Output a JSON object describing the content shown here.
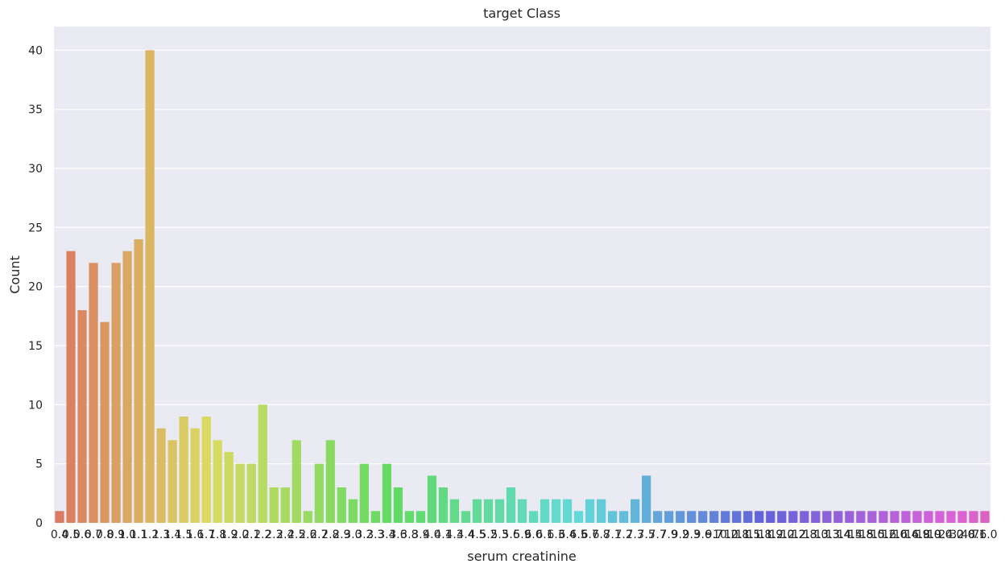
{
  "chart_data": {
    "type": "bar",
    "title": "target Class",
    "xlabel": "serum creatinine",
    "ylabel": "Count",
    "ylim": [
      0,
      42
    ],
    "yticks": [
      0,
      5,
      10,
      15,
      20,
      25,
      30,
      35,
      40
    ],
    "grid": true,
    "categories": [
      "0.4",
      "0.5",
      "0.6",
      "0.7",
      "0.8",
      "0.9",
      "1.0",
      "1.1",
      "1.2",
      "1.3",
      "1.4",
      "1.5",
      "1.6",
      "1.7",
      "1.8",
      "1.9",
      "2.0",
      "2.1",
      "2.2",
      "2.3",
      "2.4",
      "2.5",
      "2.6",
      "2.7",
      "2.8",
      "2.9",
      "3.0",
      "3.2",
      "3.3",
      "3.4",
      "3.6",
      "3.8",
      "3.9",
      "4.0",
      "4.1",
      "4.3",
      "4.4",
      "4.5",
      "5.2",
      "5.3",
      "5.6",
      "5.9",
      "6.0",
      "6.1",
      "6.3",
      "6.4",
      "6.5",
      "6.7",
      "6.8",
      "7.1",
      "7.2",
      "7.3",
      "7.5",
      "7.7",
      "7.9",
      "9.2",
      "9.3",
      "9.6",
      "9.7",
      "10.2",
      "10.8",
      "11.5",
      "11.8",
      "11.9",
      "12.0",
      "12.2",
      "12.8",
      "13.0",
      "13.3",
      "13.4",
      "14.5",
      "14.8",
      "15.0",
      "15.2",
      "16.0",
      "16.4",
      "16.9",
      "18.0",
      "19.0",
      "24.0",
      "32.0",
      "48.1",
      "76.0"
    ],
    "values": [
      1,
      23,
      18,
      22,
      17,
      22,
      23,
      24,
      40,
      8,
      7,
      9,
      8,
      9,
      7,
      6,
      5,
      5,
      10,
      3,
      3,
      7,
      1,
      5,
      7,
      3,
      2,
      5,
      1,
      5,
      3,
      1,
      1,
      4,
      3,
      2,
      1,
      2,
      2,
      2,
      3,
      2,
      1,
      2,
      2,
      2,
      1,
      2,
      2,
      1,
      1,
      2,
      4,
      1,
      1,
      1,
      1,
      1,
      1,
      1,
      1,
      1,
      1,
      1,
      1,
      1,
      1,
      1,
      1,
      1,
      1,
      1,
      1,
      1,
      1,
      1,
      1,
      1,
      1,
      1,
      1,
      1,
      1
    ],
    "colors": {
      "background": "#eaeaf2",
      "grid": "#ffffff",
      "text": "#262626"
    }
  }
}
